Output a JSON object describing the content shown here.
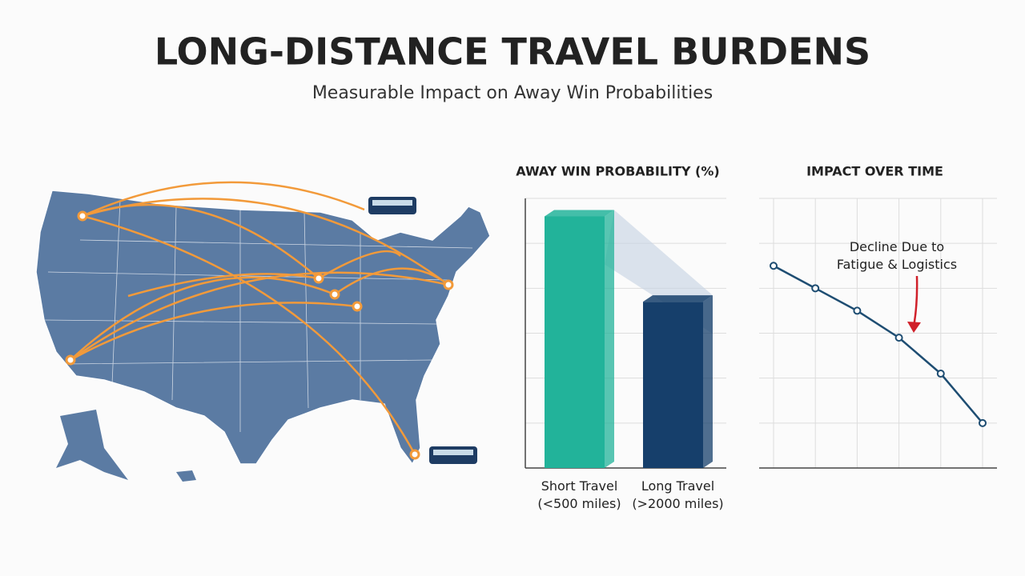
{
  "title": "LONG-DISTANCE TRAVEL BURDENS",
  "subtitle": "Measurable Impact on Away Win Probabilities",
  "chart_data": [
    {
      "type": "bar",
      "title": "AWAY WIN PROBABILITY (%)",
      "categories": [
        "Short Travel\n(<500 miles)",
        "Long Travel\n(>2000 miles)"
      ],
      "values": [
        56,
        37
      ],
      "colors": [
        "#22b39a",
        "#163f6b"
      ],
      "ylim": [
        0,
        60
      ],
      "yticks": [
        0,
        10,
        20,
        30,
        40,
        50,
        60
      ],
      "grid": true
    },
    {
      "type": "line",
      "title": "IMPACT OVER TIME",
      "categories": [
        null,
        null,
        null,
        null,
        null,
        null
      ],
      "values": [
        45,
        40,
        35,
        29,
        21,
        10
      ],
      "color": "#1e4d72",
      "ylim": [
        0,
        60
      ],
      "yticks": [
        0,
        10,
        20,
        30,
        40,
        50,
        60
      ],
      "grid": true,
      "annotation": "Decline Due to\nFatigue & Logistics",
      "annotation_color": "#d0202a"
    }
  ]
}
